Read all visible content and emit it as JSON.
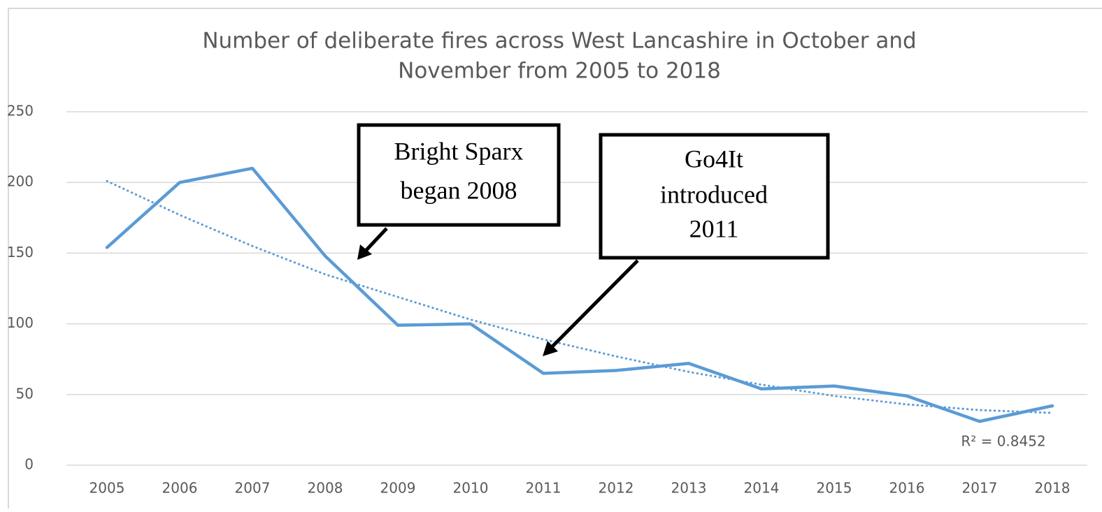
{
  "chart_data": {
    "type": "line",
    "title_lines": [
      "Number of deliberate fires across West Lancashire in October and",
      "November from 2005 to 2018"
    ],
    "x": [
      2005,
      2006,
      2007,
      2008,
      2009,
      2010,
      2011,
      2012,
      2013,
      2014,
      2015,
      2016,
      2017,
      2018
    ],
    "xlim": [
      2005,
      2018
    ],
    "series": [
      {
        "color": "#5b9bd5",
        "values": [
          154,
          200,
          210,
          148,
          99,
          100,
          65,
          67,
          72,
          54,
          56,
          49,
          31,
          42
        ]
      }
    ],
    "trendline": {
      "color": "#5b9bd5",
      "style": "dotted",
      "values": [
        201,
        177,
        155,
        135,
        119,
        103,
        89,
        77,
        66,
        57,
        49,
        43,
        39,
        37
      ],
      "label": "R² = 0.8452"
    },
    "ylim": [
      0,
      250
    ],
    "yticks": [
      0,
      50,
      100,
      150,
      200,
      250
    ],
    "grid": true,
    "annotations": [
      {
        "lines": [
          "Bright Sparx",
          "began 2008"
        ]
      },
      {
        "lines": [
          "Go4It",
          "introduced",
          "2011"
        ]
      }
    ]
  }
}
